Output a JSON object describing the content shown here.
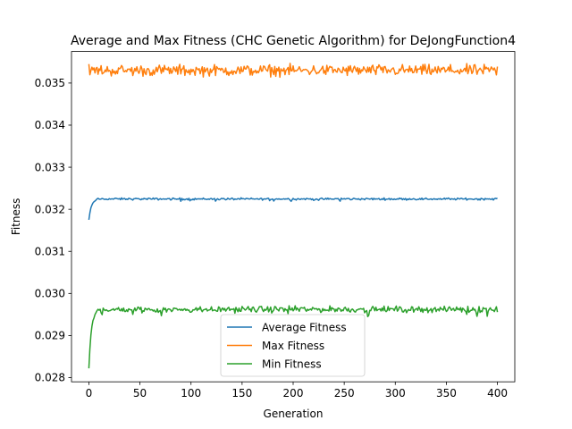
{
  "chart_data": {
    "type": "line",
    "title": "Average and Max Fitness (CHC Genetic Algorithm) for DeJongFunction4",
    "xlabel": "Generation",
    "ylabel": "Fitness",
    "xlim": [
      -17,
      417
    ],
    "ylim": [
      0.0279,
      0.03575
    ],
    "xticks": [
      0,
      50,
      100,
      150,
      200,
      250,
      300,
      350,
      400
    ],
    "xtick_labels": [
      "0",
      "50",
      "100",
      "150",
      "200",
      "250",
      "300",
      "350",
      "400"
    ],
    "yticks": [
      0.028,
      0.029,
      0.03,
      0.031,
      0.032,
      0.033,
      0.034,
      0.035
    ],
    "ytick_labels": [
      "0.028",
      "0.029",
      "0.030",
      "0.031",
      "0.032",
      "0.033",
      "0.034",
      "0.035"
    ],
    "grid": false,
    "legend_position": "lower center",
    "series": [
      {
        "name": "Average Fitness",
        "color": "#1f77b4",
        "generator": "ramp",
        "start": 0.03175,
        "plateau": 0.032245,
        "rise_gens": 8,
        "noise": 2e-05
      },
      {
        "name": "Max Fitness",
        "color": "#ff7f0e",
        "generator": "noise",
        "start": 0.03545,
        "plateau": 0.0353,
        "noise": 0.00011
      },
      {
        "name": "Min Fitness",
        "color": "#2ca02c",
        "generator": "ramp",
        "start": 0.02822,
        "plateau": 0.02962,
        "rise_gens": 8,
        "noise": 6e-05
      }
    ],
    "x_points": 400
  }
}
